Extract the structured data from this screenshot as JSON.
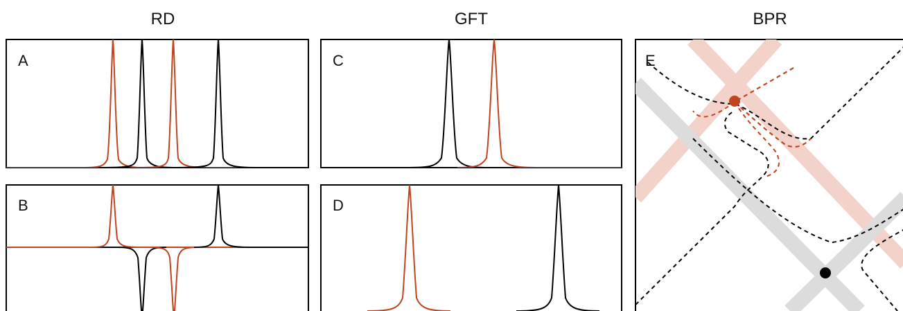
{
  "columns": {
    "rd": "RD",
    "gft": "GFT",
    "bpr": "BPR"
  },
  "panels": {
    "a": "A",
    "b": "B",
    "c": "C",
    "d": "D",
    "e": "E"
  },
  "colors": {
    "accent": "#c0441f",
    "accent_light": "#f3cfc4",
    "trace": "#000000",
    "gray_band": "#d9d9d9"
  }
}
